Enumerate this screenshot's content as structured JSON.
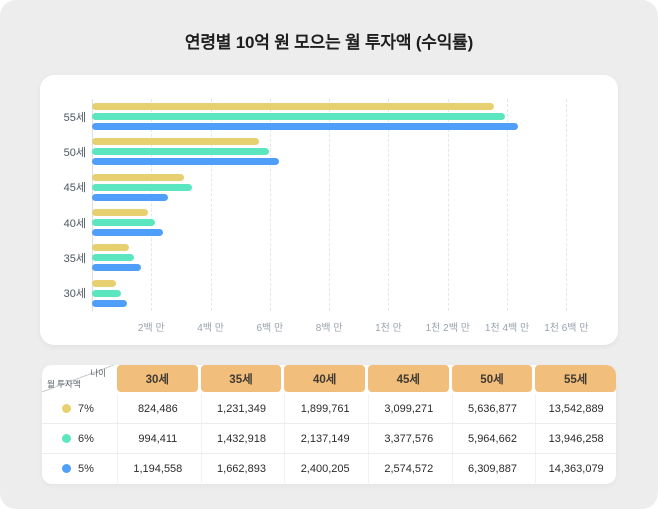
{
  "page": {
    "background": "#EDEDEE"
  },
  "title": "연령별 10억 원 모으는 월 투자액 (수익률)",
  "chart_data": {
    "type": "bar",
    "orientation": "horizontal",
    "title": "연령별 10억 원 모으는 월 투자액 (수익률)",
    "categories": [
      "55세",
      "50세",
      "45세",
      "40세",
      "35세",
      "30세"
    ],
    "series": [
      {
        "name": "7%",
        "color": "#E7D06F",
        "values": [
          13542889,
          5636877,
          3099271,
          1899761,
          1231349,
          824486
        ]
      },
      {
        "name": "6%",
        "color": "#5BE6C0",
        "values": [
          13946258,
          5964662,
          3377576,
          2137149,
          1432918,
          994411
        ]
      },
      {
        "name": "5%",
        "color": "#4F9EFA",
        "values": [
          14363079,
          6309887,
          2574572,
          2400205,
          1662893,
          1194558
        ]
      }
    ],
    "x_ticks": [
      {
        "value": 2000000,
        "label": "2백 만"
      },
      {
        "value": 4000000,
        "label": "4백 만"
      },
      {
        "value": 6000000,
        "label": "6백 만"
      },
      {
        "value": 8000000,
        "label": "8백 만"
      },
      {
        "value": 10000000,
        "label": "1천 만"
      },
      {
        "value": 12000000,
        "label": "1천 2백 만"
      },
      {
        "value": 14000000,
        "label": "1천 4백 만"
      },
      {
        "value": 16000000,
        "label": "1천 6백 만"
      }
    ],
    "xlim": [
      0,
      17000000
    ],
    "grid": "dashed-vertical",
    "legend": "none"
  },
  "table": {
    "corner_top": "나이",
    "corner_bottom": "월 투자액",
    "header_bg": "#F2BE7B",
    "columns": [
      "30세",
      "35세",
      "40세",
      "45세",
      "50세",
      "55세"
    ],
    "rows": [
      {
        "rate": "7%",
        "color": "#E7D06F",
        "values": [
          "824,486",
          "1,231,349",
          "1,899,761",
          "3,099,271",
          "5,636,877",
          "13,542,889"
        ]
      },
      {
        "rate": "6%",
        "color": "#5BE6C0",
        "values": [
          "994,411",
          "1,432,918",
          "2,137,149",
          "3,377,576",
          "5,964,662",
          "13,946,258"
        ]
      },
      {
        "rate": "5%",
        "color": "#4F9EFA",
        "values": [
          "1,194,558",
          "1,662,893",
          "2,400,205",
          "2,574,572",
          "6,309,887",
          "14,363,079"
        ]
      }
    ]
  }
}
